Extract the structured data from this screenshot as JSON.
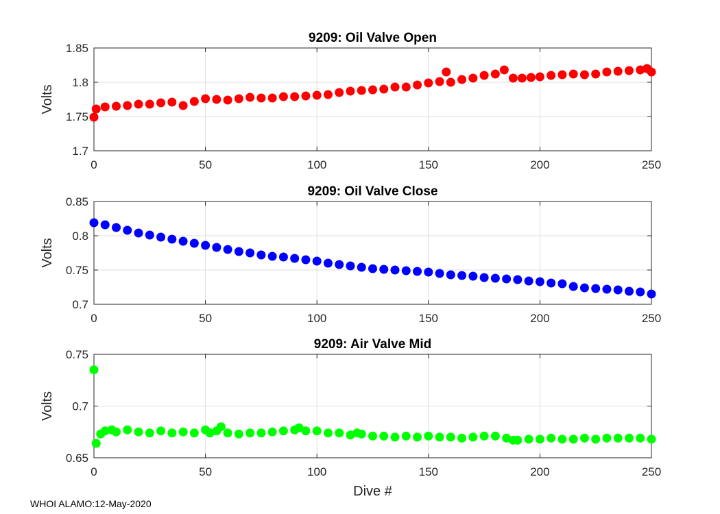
{
  "footer": "WHOI ALAMO:12-May-2020",
  "chart_data": [
    {
      "type": "scatter",
      "title": "9209: Oil Valve Open",
      "xlabel": "",
      "ylabel": "Volts",
      "xlim": [
        0,
        250
      ],
      "ylim": [
        1.7,
        1.85
      ],
      "xticks": [
        0,
        50,
        100,
        150,
        200,
        250
      ],
      "yticks": [
        1.7,
        1.75,
        1.8,
        1.85
      ],
      "ytick_labels": [
        "1.7",
        "1.75",
        "1.8",
        "1.85"
      ],
      "grid": true,
      "color": "#ff0000",
      "series": [
        {
          "name": "Oil Valve Open",
          "x": [
            0,
            1,
            5,
            10,
            15,
            20,
            25,
            30,
            35,
            40,
            45,
            50,
            55,
            60,
            65,
            70,
            75,
            80,
            85,
            90,
            95,
            100,
            105,
            110,
            115,
            120,
            125,
            130,
            135,
            140,
            145,
            150,
            155,
            158,
            160,
            165,
            170,
            175,
            180,
            184,
            188,
            192,
            196,
            200,
            205,
            210,
            215,
            220,
            225,
            230,
            235,
            240,
            245,
            248,
            250
          ],
          "y": [
            1.749,
            1.761,
            1.764,
            1.765,
            1.766,
            1.768,
            1.768,
            1.77,
            1.771,
            1.766,
            1.772,
            1.776,
            1.775,
            1.774,
            1.776,
            1.778,
            1.777,
            1.777,
            1.779,
            1.779,
            1.78,
            1.781,
            1.782,
            1.785,
            1.787,
            1.788,
            1.789,
            1.79,
            1.793,
            1.793,
            1.796,
            1.799,
            1.801,
            1.815,
            1.8,
            1.804,
            1.806,
            1.81,
            1.812,
            1.818,
            1.806,
            1.806,
            1.807,
            1.808,
            1.81,
            1.811,
            1.812,
            1.811,
            1.812,
            1.815,
            1.816,
            1.817,
            1.818,
            1.82,
            1.815
          ]
        }
      ]
    },
    {
      "type": "scatter",
      "title": "9209: Oil Valve Close",
      "xlabel": "",
      "ylabel": "Volts",
      "xlim": [
        0,
        250
      ],
      "ylim": [
        0.7,
        0.85
      ],
      "xticks": [
        0,
        50,
        100,
        150,
        200,
        250
      ],
      "yticks": [
        0.7,
        0.75,
        0.8,
        0.85
      ],
      "ytick_labels": [
        "0.7",
        "0.75",
        "0.8",
        "0.85"
      ],
      "grid": true,
      "color": "#0000ff",
      "series": [
        {
          "name": "Oil Valve Close",
          "x": [
            0,
            5,
            10,
            15,
            20,
            25,
            30,
            35,
            40,
            45,
            50,
            55,
            60,
            65,
            70,
            75,
            80,
            85,
            90,
            95,
            100,
            105,
            110,
            115,
            120,
            125,
            130,
            135,
            140,
            145,
            150,
            155,
            160,
            165,
            170,
            175,
            180,
            185,
            190,
            195,
            200,
            205,
            210,
            215,
            220,
            225,
            230,
            235,
            240,
            245,
            250
          ],
          "y": [
            0.819,
            0.816,
            0.812,
            0.808,
            0.804,
            0.801,
            0.798,
            0.795,
            0.792,
            0.789,
            0.786,
            0.783,
            0.78,
            0.777,
            0.775,
            0.772,
            0.77,
            0.769,
            0.767,
            0.765,
            0.763,
            0.76,
            0.758,
            0.756,
            0.754,
            0.752,
            0.751,
            0.75,
            0.749,
            0.748,
            0.747,
            0.745,
            0.743,
            0.742,
            0.741,
            0.739,
            0.738,
            0.737,
            0.736,
            0.734,
            0.733,
            0.731,
            0.73,
            0.726,
            0.724,
            0.723,
            0.722,
            0.721,
            0.719,
            0.718,
            0.715
          ]
        }
      ]
    },
    {
      "type": "scatter",
      "title": "9209: Air Valve Mid",
      "xlabel": "Dive #",
      "ylabel": "Volts",
      "xlim": [
        0,
        250
      ],
      "ylim": [
        0.65,
        0.75
      ],
      "xticks": [
        0,
        50,
        100,
        150,
        200,
        250
      ],
      "yticks": [
        0.65,
        0.7,
        0.75
      ],
      "ytick_labels": [
        "0.65",
        "0.7",
        "0.75"
      ],
      "grid": true,
      "color": "#00ff00",
      "series": [
        {
          "name": "Air Valve Mid",
          "x": [
            0,
            1,
            3,
            5,
            8,
            10,
            15,
            20,
            25,
            30,
            35,
            40,
            45,
            50,
            52,
            55,
            57,
            60,
            65,
            70,
            75,
            80,
            85,
            90,
            92,
            95,
            100,
            105,
            110,
            115,
            118,
            120,
            125,
            130,
            135,
            140,
            145,
            150,
            155,
            160,
            165,
            170,
            175,
            180,
            185,
            188,
            190,
            195,
            200,
            205,
            210,
            215,
            220,
            225,
            230,
            235,
            240,
            245,
            250
          ],
          "y": [
            0.735,
            0.664,
            0.673,
            0.676,
            0.677,
            0.675,
            0.677,
            0.675,
            0.674,
            0.676,
            0.674,
            0.675,
            0.674,
            0.677,
            0.674,
            0.676,
            0.68,
            0.674,
            0.673,
            0.674,
            0.674,
            0.675,
            0.676,
            0.677,
            0.679,
            0.676,
            0.676,
            0.674,
            0.674,
            0.672,
            0.674,
            0.673,
            0.671,
            0.671,
            0.67,
            0.671,
            0.67,
            0.671,
            0.67,
            0.67,
            0.669,
            0.67,
            0.671,
            0.671,
            0.669,
            0.667,
            0.667,
            0.668,
            0.668,
            0.669,
            0.668,
            0.668,
            0.669,
            0.668,
            0.669,
            0.669,
            0.669,
            0.669,
            0.668
          ]
        }
      ]
    }
  ]
}
